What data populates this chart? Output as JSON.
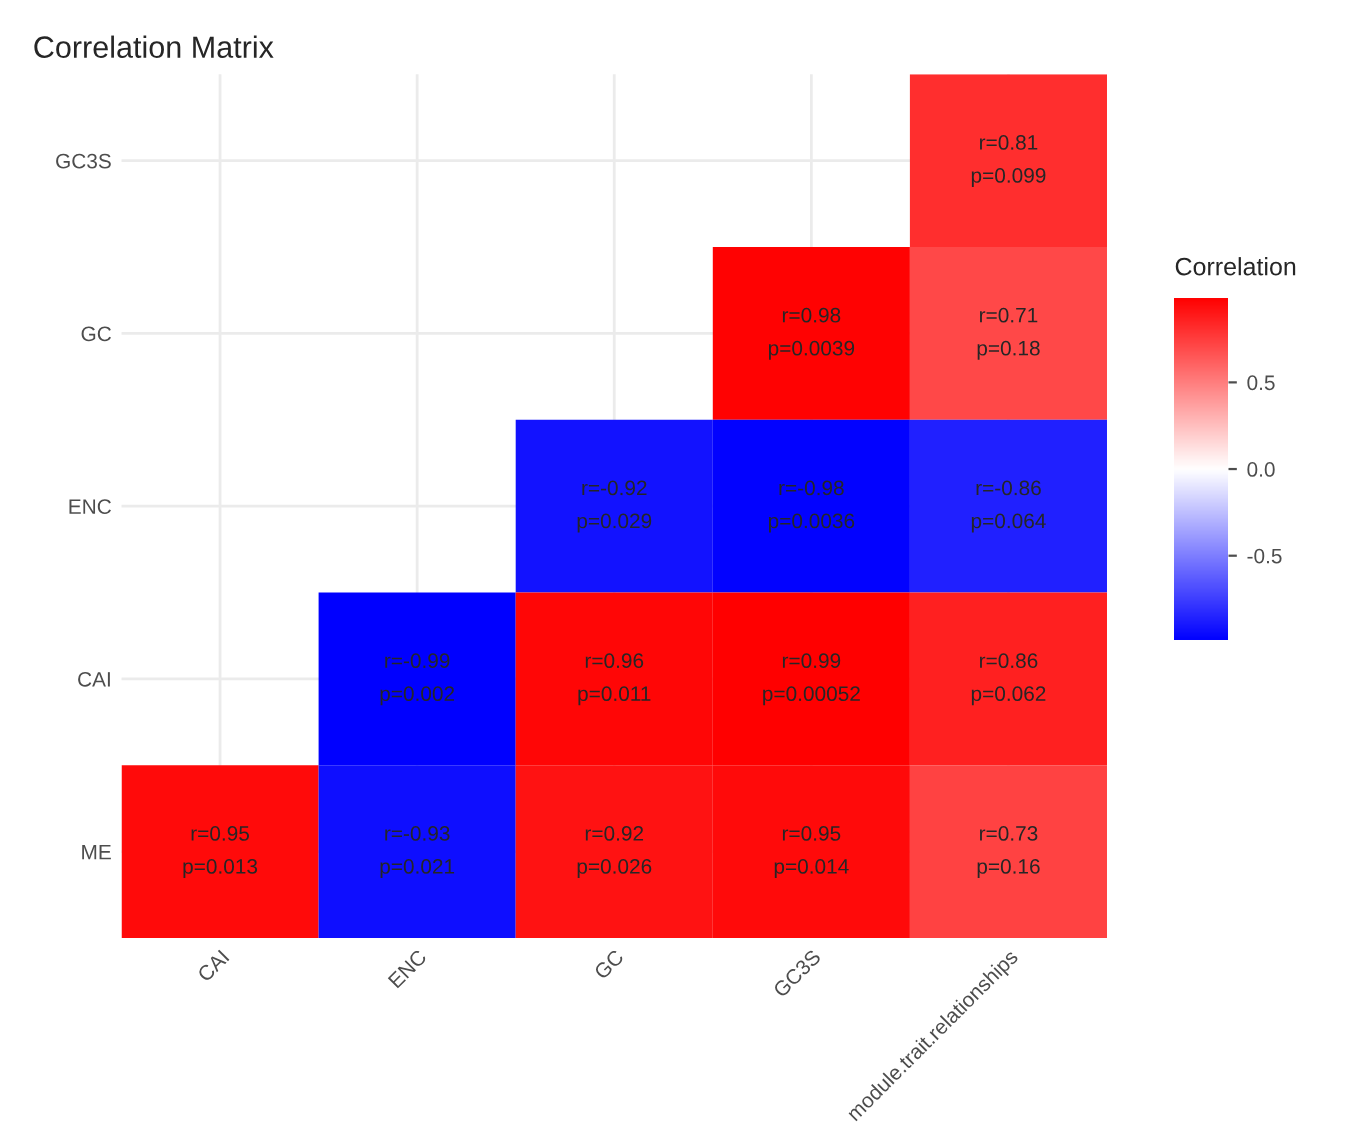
{
  "chart_data": {
    "type": "heatmap",
    "title": "Correlation Matrix",
    "clabel": "Correlation",
    "categories": [
      "CAI",
      "ENC",
      "GC",
      "GC3S",
      "module.trait.relationships"
    ],
    "y_categories": [
      "GC3S",
      "GC",
      "ENC",
      "CAI",
      "ME"
    ],
    "cells": [
      [
        null,
        null,
        null,
        null,
        0.81
      ],
      [
        null,
        null,
        null,
        0.98,
        0.71
      ],
      [
        null,
        null,
        -0.92,
        -0.98,
        -0.86
      ],
      [
        null,
        -0.99,
        0.96,
        0.99,
        0.86
      ],
      [
        0.95,
        -0.93,
        0.92,
        0.95,
        0.73
      ]
    ],
    "cell_labels": [
      [
        null,
        null,
        null,
        null,
        "r=0.81\np=0.099"
      ],
      [
        null,
        null,
        null,
        "r=0.98\np=0.0039",
        "r=0.71\np=0.18"
      ],
      [
        null,
        null,
        "r=-0.92\np=0.029",
        "r=-0.98\np=0.0036",
        "r=-0.86\np=0.064"
      ],
      [
        null,
        "r=-0.99\np=0.002",
        "r=0.96\np=0.011",
        "r=0.99\np=0.00052",
        "r=0.86\np=0.062"
      ],
      [
        "r=0.95\np=0.013",
        "r=-0.93\np=0.021",
        "r=0.92\np=0.026",
        "r=0.95\np=0.014",
        "r=0.73\np=0.16"
      ]
    ],
    "colors": [
      "#0000ff",
      "#ffffff",
      "#ff0000"
    ],
    "clim": [
      -0.99,
      0.99
    ],
    "cticks": [
      {
        "value": -0.5,
        "label": "-0.5"
      },
      {
        "value": 0.0,
        "label": "0.0"
      },
      {
        "value": 0.5,
        "label": "0.5"
      }
    ],
    "grid": true
  }
}
